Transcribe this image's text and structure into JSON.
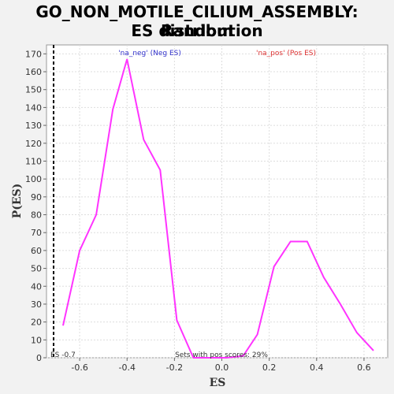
{
  "title_lines": [
    "GO_NON_MOTILE_CILIUM_ASSEMBLY: Random",
    "ES distribution"
  ],
  "chart_data": {
    "type": "line",
    "title": "GO_NON_MOTILE_CILIUM_ASSEMBLY: Random ES distribution",
    "xlabel": "ES",
    "ylabel": "P(ES)",
    "xlim": [
      -0.74,
      0.7
    ],
    "ylim": [
      0,
      175
    ],
    "xticks": [
      -0.6,
      -0.4,
      -0.2,
      0.0,
      0.2,
      0.4,
      0.6
    ],
    "yticks": [
      0,
      10,
      20,
      30,
      40,
      50,
      60,
      70,
      80,
      90,
      100,
      110,
      120,
      130,
      140,
      150,
      160,
      170
    ],
    "xtick_labels": [
      "-0.6",
      "-0.4",
      "-0.2",
      "0.0",
      "0.2",
      "0.4",
      "0.6"
    ],
    "grid": true,
    "series": [
      {
        "color": "#ff33ff",
        "x": [
          -0.67,
          -0.6,
          -0.53,
          -0.46,
          -0.4,
          -0.33,
          -0.26,
          -0.19,
          -0.12,
          -0.05,
          0.02,
          0.09,
          0.15,
          0.22,
          0.29,
          0.36,
          0.43,
          0.5,
          0.57,
          0.64
        ],
        "y": [
          18,
          60,
          80,
          139,
          167,
          122,
          105,
          21,
          0,
          0,
          0,
          1,
          13,
          51,
          65,
          65,
          45,
          30,
          14,
          4
        ]
      }
    ],
    "legend": [
      {
        "label": "'na_neg' (Neg ES)",
        "color": "#3333cc"
      },
      {
        "label": "'na_pos' (Pos ES)",
        "color": "#dd3333"
      }
    ],
    "marker_line": {
      "x": -0.71,
      "label": "ES -0.7"
    },
    "note": "Sets with pos scores: 29%"
  }
}
